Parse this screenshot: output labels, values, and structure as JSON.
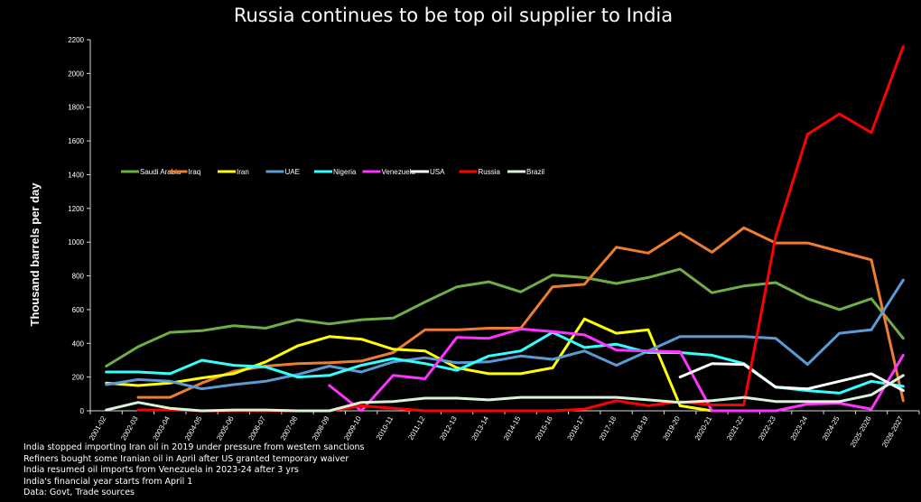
{
  "chart_data": {
    "type": "line",
    "title": "Russia continues to be top oil supplier to India",
    "ylabel": "Thousand barrels per day",
    "xlabel": "",
    "ylim": [
      0,
      2200
    ],
    "yticks": [
      0,
      200,
      400,
      600,
      800,
      1000,
      1200,
      1400,
      1600,
      1800,
      2000,
      2200
    ],
    "grid": false,
    "legend_placement": "inside-left",
    "categories": [
      "2001-02",
      "2002-03",
      "2003-04",
      "2004-05",
      "2005-06",
      "2006-07",
      "2007-08",
      "2008-09",
      "2009-10",
      "2010-11",
      "2011-12",
      "2012-13",
      "2013-14",
      "2014-15",
      "2015-16",
      "2016-17",
      "2017-18",
      "2018-19",
      "2019-20",
      "2020-21",
      "2021-22",
      "2022-23",
      "2023-24",
      "2024-25",
      "2025-2026",
      "2026-2027"
    ],
    "series": [
      {
        "name": "Saudi Arabia",
        "color": "#70AD47",
        "values": [
          265,
          380,
          465,
          475,
          505,
          490,
          540,
          515,
          540,
          550,
          645,
          735,
          765,
          705,
          805,
          790,
          755,
          790,
          840,
          700,
          740,
          760,
          665,
          600,
          665,
          430
        ]
      },
      {
        "name": "Iraq",
        "color": "#ED7D31",
        "values": [
          null,
          80,
          80,
          165,
          235,
          265,
          280,
          285,
          295,
          345,
          480,
          480,
          490,
          490,
          735,
          750,
          970,
          935,
          1055,
          940,
          1085,
          995,
          995,
          945,
          895,
          60
        ]
      },
      {
        "name": "Iran",
        "color": "#FFFF00",
        "values": [
          165,
          150,
          165,
          195,
          220,
          290,
          385,
          440,
          425,
          365,
          355,
          255,
          220,
          220,
          255,
          545,
          460,
          480,
          30,
          0,
          null,
          null,
          null,
          null,
          null,
          30
        ]
      },
      {
        "name": "UAE",
        "color": "#5B9BD5",
        "values": [
          155,
          185,
          175,
          130,
          155,
          175,
          215,
          265,
          230,
          290,
          315,
          285,
          290,
          325,
          305,
          355,
          270,
          355,
          440,
          440,
          440,
          430,
          275,
          460,
          480,
          775
        ]
      },
      {
        "name": "Nigeria",
        "color": "#33FFFF",
        "values": [
          230,
          230,
          220,
          300,
          270,
          260,
          200,
          210,
          270,
          310,
          280,
          240,
          325,
          355,
          465,
          375,
          395,
          345,
          345,
          330,
          280,
          140,
          120,
          105,
          175,
          145
        ]
      },
      {
        "name": "Venezuela",
        "color": "#FF33FF",
        "values": [
          null,
          null,
          null,
          null,
          null,
          null,
          null,
          150,
          0,
          210,
          190,
          435,
          430,
          485,
          470,
          450,
          360,
          355,
          350,
          0,
          0,
          0,
          40,
          45,
          10,
          330
        ]
      },
      {
        "name": "USA",
        "color": "#FFFFFF",
        "values": [
          null,
          null,
          null,
          null,
          null,
          null,
          null,
          null,
          null,
          null,
          null,
          null,
          null,
          null,
          null,
          null,
          null,
          null,
          200,
          280,
          275,
          140,
          130,
          175,
          220,
          120
        ]
      },
      {
        "name": "Russia",
        "color": "#FF0000",
        "values": [
          null,
          5,
          5,
          0,
          0,
          0,
          0,
          0,
          30,
          15,
          0,
          0,
          0,
          0,
          0,
          10,
          60,
          30,
          55,
          35,
          35,
          1035,
          1640,
          1760,
          1650,
          2160
        ]
      },
      {
        "name": "Brazil",
        "color": "#D9F2D9",
        "values": [
          5,
          50,
          15,
          0,
          5,
          5,
          0,
          0,
          50,
          55,
          75,
          75,
          65,
          80,
          80,
          80,
          80,
          65,
          50,
          60,
          80,
          55,
          55,
          55,
          95,
          210
        ]
      }
    ]
  },
  "notes": [
    "India stopped importing Iran oil in 2019 under pressure from western sanctions",
    "Refiners bought some Iranian oil in April after US granted temporary waiver",
    "India resumed oil imports from Venezuela in 2023-24 after 3 yrs",
    "India's financial year starts from April 1",
    "Data: Govt, Trade sources"
  ]
}
